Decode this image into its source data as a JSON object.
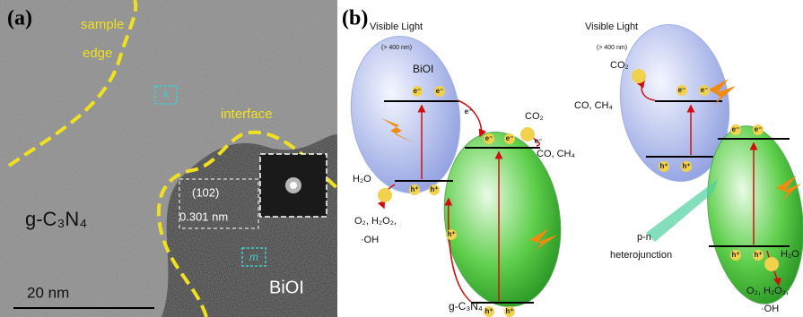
{
  "panel_a": {
    "label": "(a)",
    "sample": "sample",
    "edge": "edge",
    "interface": "interface",
    "region_k": "k",
    "plane": "(102)",
    "spacing": "0.301 nm",
    "substrate": "g-C₃N₄",
    "material": "BiOI",
    "scale_bar": "20 nm",
    "region_m": "m"
  },
  "panel_b": {
    "label": "(b)",
    "left": {
      "light": "Visible Light",
      "wavelength": "(> 400 nm)",
      "top_material": "BiOI",
      "bottom_material": "g-C₃N₄",
      "reactant_co2": "CO₂",
      "product_co": "CO, CH₄",
      "reactant_h2o": "H₂O",
      "product_o2": "O₂, H₂O₂,",
      "product_oh": "·OH",
      "charges": [
        "e⁻",
        "e⁻",
        "e⁻",
        "e⁻",
        "e⁻",
        "e⁻",
        "h⁺",
        "h⁺",
        "h⁺",
        "h⁺",
        "h⁺"
      ]
    },
    "right": {
      "light": "Visible Light",
      "wavelength": "(> 400 nm)",
      "reactant_co2": "CO₂",
      "product_co": "CO, CH₄",
      "junction_type": "p-n",
      "junction": "heterojunction",
      "reactant_h2o": "H₂O",
      "product_o2": "O₂, H₂O₂,",
      "product_oh": "·OH",
      "charges": [
        "e⁻",
        "e⁻",
        "e⁻",
        "e⁻",
        "h⁺",
        "h⁺",
        "h⁺",
        "h⁺"
      ]
    }
  }
}
